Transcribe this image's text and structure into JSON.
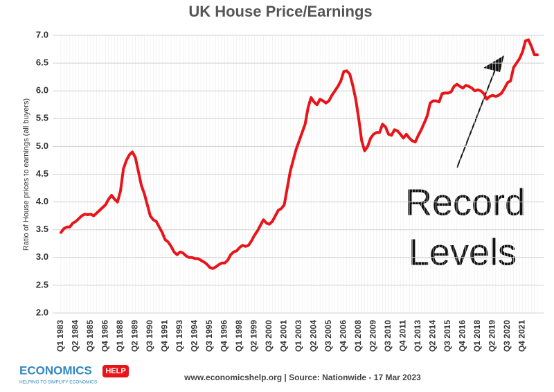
{
  "chart_data": {
    "type": "line",
    "title": "UK House Price/Earnings",
    "y_label": "Ratio of House prices to earnings (all buyers)",
    "annotation_lines": [
      "Record",
      "Levels"
    ],
    "footer": "www.economicshelp.org | Source: Nationwide - 17 Mar 2023",
    "logo": {
      "main": "ECONOMICS",
      "badge": "HELP",
      "tagline": "HELPING TO SIMPLIFY ECONOMICS"
    },
    "color": "#e8141a",
    "grid": true,
    "ylim": [
      2,
      7
    ],
    "yticks": [
      {
        "value": 2,
        "label": "2.0"
      },
      2.5,
      {
        "value": 3,
        "label": "3.0"
      },
      3.5,
      {
        "value": 4,
        "label": "4.0"
      },
      4.5,
      {
        "value": 5,
        "label": "5.0"
      },
      5.5,
      {
        "value": 6,
        "label": "6.0"
      },
      6.5,
      {
        "value": 7,
        "label": "7.0"
      }
    ],
    "categories": [
      "Q1 1983",
      null,
      null,
      null,
      null,
      "Q2 1984",
      null,
      null,
      null,
      null,
      "Q3 1985",
      null,
      null,
      null,
      null,
      "Q4 1986",
      null,
      null,
      null,
      null,
      "Q1 1988",
      null,
      null,
      null,
      null,
      "Q2 1989",
      null,
      null,
      null,
      null,
      "Q3 1990",
      null,
      null,
      null,
      null,
      "Q4 1991",
      null,
      null,
      null,
      null,
      "Q1 1993",
      null,
      null,
      null,
      null,
      "Q2 1994",
      null,
      null,
      null,
      null,
      "Q3 1995",
      null,
      null,
      null,
      null,
      "Q4 1996",
      null,
      null,
      null,
      null,
      "Q1 1998",
      null,
      null,
      null,
      null,
      "Q2 1999",
      null,
      null,
      null,
      null,
      "Q3 2000",
      null,
      null,
      null,
      null,
      "Q4 2001",
      null,
      null,
      null,
      null,
      "Q1 2003",
      null,
      null,
      null,
      null,
      "Q2 2004",
      null,
      null,
      null,
      null,
      "Q3 2005",
      null,
      null,
      null,
      null,
      "Q4 2006",
      null,
      null,
      null,
      null,
      "Q1 2008",
      null,
      null,
      null,
      null,
      "Q2 2009",
      null,
      null,
      null,
      null,
      "Q3 2010",
      null,
      null,
      null,
      null,
      "Q4 2011",
      null,
      null,
      null,
      null,
      "Q1 2013",
      null,
      null,
      null,
      null,
      "Q2 2014",
      null,
      null,
      null,
      null,
      "Q3 2015",
      null,
      null,
      null,
      null,
      "Q4 2016",
      null,
      null,
      null,
      null,
      "Q1 2018",
      null,
      null,
      null,
      null,
      "Q2 2019",
      null,
      null,
      null,
      null,
      "Q3 2020",
      null,
      null,
      null,
      null,
      "Q4 2021",
      null,
      null,
      null,
      null,
      null
    ],
    "values": [
      3.45,
      3.52,
      3.55,
      3.55,
      3.62,
      3.65,
      3.7,
      3.75,
      3.78,
      3.77,
      3.78,
      3.75,
      3.8,
      3.85,
      3.9,
      3.95,
      4.05,
      4.12,
      4.05,
      4.0,
      4.2,
      4.6,
      4.75,
      4.85,
      4.9,
      4.8,
      4.55,
      4.3,
      4.15,
      3.95,
      3.75,
      3.68,
      3.65,
      3.55,
      3.45,
      3.32,
      3.28,
      3.2,
      3.1,
      3.05,
      3.1,
      3.08,
      3.03,
      3.0,
      3.0,
      2.98,
      2.98,
      2.95,
      2.92,
      2.88,
      2.82,
      2.8,
      2.83,
      2.87,
      2.9,
      2.9,
      2.95,
      3.05,
      3.1,
      3.12,
      3.18,
      3.22,
      3.2,
      3.22,
      3.3,
      3.4,
      3.48,
      3.58,
      3.68,
      3.62,
      3.6,
      3.65,
      3.75,
      3.85,
      3.88,
      3.95,
      4.25,
      4.55,
      4.75,
      4.95,
      5.1,
      5.25,
      5.4,
      5.7,
      5.88,
      5.8,
      5.75,
      5.85,
      5.82,
      5.78,
      5.82,
      5.92,
      6.0,
      6.08,
      6.18,
      6.35,
      6.36,
      6.3,
      6.1,
      5.85,
      5.5,
      5.1,
      4.92,
      5.0,
      5.15,
      5.22,
      5.25,
      5.25,
      5.4,
      5.35,
      5.22,
      5.2,
      5.3,
      5.28,
      5.22,
      5.15,
      5.22,
      5.15,
      5.1,
      5.08,
      5.2,
      5.3,
      5.42,
      5.55,
      5.78,
      5.82,
      5.82,
      5.8,
      5.95,
      5.96,
      5.96,
      5.98,
      6.08,
      6.12,
      6.08,
      6.05,
      6.1,
      6.08,
      6.05,
      6.0,
      6.02,
      6.0,
      5.95,
      5.85,
      5.9,
      5.92,
      5.9,
      5.92,
      5.96,
      6.05,
      6.15,
      6.18,
      6.42,
      6.5,
      6.58,
      6.7,
      6.9,
      6.92,
      6.8,
      6.65,
      6.65
    ]
  }
}
